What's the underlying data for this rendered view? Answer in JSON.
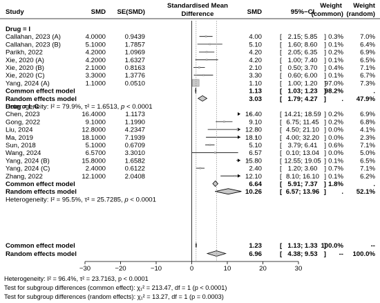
{
  "headers": {
    "study": "Study",
    "smd": "SMD",
    "se": "SE(SMD)",
    "plot_title_line1": "Standardised Mean",
    "plot_title_line2": "Difference",
    "smd2": "SMD",
    "ci": "95%−CI",
    "weight_common_line1": "Weight",
    "weight_common_line2": "(common)",
    "weight_random_line1": "Weight",
    "weight_random_line2": "(random)"
  },
  "chart_data": {
    "type": "forest",
    "x_ticks": [
      -30,
      -20,
      -10,
      0,
      10,
      20,
      30
    ],
    "x_tick_labels": [
      "−30",
      "−20",
      "−10",
      "0",
      "10",
      "20",
      "30"
    ],
    "xlim": [
      -30,
      30
    ],
    "groups": [
      {
        "label": "Drug = I",
        "studies": [
          {
            "study": "Callahan, 2023 (A)",
            "smd": "4.0000",
            "se": "0.9439",
            "est": 4.0,
            "lo": 2.15,
            "hi": 5.85,
            "est_text": "4.00",
            "ci_text": "[ 2.15;  5.85]",
            "w_common": "0.3%",
            "w_random": "7.0%"
          },
          {
            "study": "Callahan, 2023 (B)",
            "smd": "5.1000",
            "se": "1.7857",
            "est": 5.1,
            "lo": 1.6,
            "hi": 8.6,
            "est_text": "5.10",
            "ci_text": "[ 1.60;  8.60]",
            "w_common": "0.1%",
            "w_random": "6.4%"
          },
          {
            "study": "Parikh, 2022",
            "smd": "4.2000",
            "se": "1.0969",
            "est": 4.2,
            "lo": 2.05,
            "hi": 6.35,
            "est_text": "4.20",
            "ci_text": "[ 2.05;  6.35]",
            "w_common": "0.2%",
            "w_random": "6.9%"
          },
          {
            "study": "Xie, 2020 (A)",
            "smd": "4.2000",
            "se": "1.6327",
            "est": 4.2,
            "lo": 1.0,
            "hi": 7.4,
            "est_text": "4.20",
            "ci_text": "[ 1.00;  7.40]",
            "w_common": "0.1%",
            "w_random": "6.5%"
          },
          {
            "study": "Xie, 2020 (B)",
            "smd": "2.1000",
            "se": "0.8163",
            "est": 2.1,
            "lo": 0.5,
            "hi": 3.7,
            "est_text": "2.10",
            "ci_text": "[ 0.50;  3.70]",
            "w_common": "0.4%",
            "w_random": "7.1%"
          },
          {
            "study": "Xie, 2020 (C)",
            "smd": "3.3000",
            "se": "1.3776",
            "est": 3.3,
            "lo": 0.6,
            "hi": 6.0,
            "est_text": "3.30",
            "ci_text": "[ 0.60;  6.00]",
            "w_common": "0.1%",
            "w_random": "6.7%"
          },
          {
            "study": "Yang, 2024 (A)",
            "smd": "1.1000",
            "se": "0.0510",
            "est": 1.1,
            "lo": 1.0,
            "hi": 1.2,
            "est_text": "1.10",
            "ci_text": "[ 1.00;  1.20]",
            "w_common": "97.0%",
            "w_random": "7.3%"
          }
        ],
        "common": {
          "label": "Common effect model",
          "est": 1.13,
          "lo": 1.03,
          "hi": 1.23,
          "est_text": "1.13",
          "ci_text": "[ 1.03;  1.23]",
          "w_common": "98.2%",
          "w_random": "."
        },
        "random": {
          "label": "Random effects model",
          "est": 3.03,
          "lo": 1.79,
          "hi": 4.27,
          "est_text": "3.03",
          "ci_text": "[ 1.79;  4.27]",
          "w_common": ".",
          "w_random": "47.9%"
        },
        "heterogeneity": "Heterogeneity: I² = 79.9%, τ² = 1.6513, p < 0.0001"
      },
      {
        "label": "Drug = I_C",
        "studies": [
          {
            "study": "Chen, 2023",
            "smd": "16.4000",
            "se": "1.1173",
            "est": 16.4,
            "lo": 14.21,
            "hi": 18.59,
            "est_text": "16.40",
            "ci_text": "[14.21; 18.59]",
            "w_common": "0.2%",
            "w_random": "6.9%"
          },
          {
            "study": "Gong, 2022",
            "smd": "9.1000",
            "se": "1.1990",
            "est": 9.1,
            "lo": 6.75,
            "hi": 11.45,
            "est_text": "9.10",
            "ci_text": "[ 6.75; 11.45]",
            "w_common": "0.2%",
            "w_random": "6.8%"
          },
          {
            "study": "Liu, 2024",
            "smd": "12.8000",
            "se": "4.2347",
            "est": 12.8,
            "lo": 4.5,
            "hi": 21.1,
            "est_text": "12.80",
            "ci_text": "[ 4.50; 21.10]",
            "w_common": "0.0%",
            "w_random": "4.1%"
          },
          {
            "study": "Ma, 2019",
            "smd": "18.1000",
            "se": "7.1939",
            "est": 18.1,
            "lo": 4.0,
            "hi": 32.2,
            "est_text": "18.10",
            "ci_text": "[ 4.00; 32.20]",
            "w_common": "0.0%",
            "w_random": "2.3%"
          },
          {
            "study": "Sun, 2018",
            "smd": "5.1000",
            "se": "0.6709",
            "est": 5.1,
            "lo": 3.79,
            "hi": 6.41,
            "est_text": "5.10",
            "ci_text": "[ 3.79;  6.41]",
            "w_common": "0.6%",
            "w_random": "7.1%"
          },
          {
            "study": "Wang, 2024",
            "smd": "6.5700",
            "se": "3.3010",
            "est": 6.57,
            "lo": 0.1,
            "hi": 13.04,
            "est_text": "6.57",
            "ci_text": "[ 0.10; 13.04]",
            "w_common": "0.0%",
            "w_random": "5.0%"
          },
          {
            "study": "Yang, 2024 (B)",
            "smd": "15.8000",
            "se": "1.6582",
            "est": 15.8,
            "lo": 12.55,
            "hi": 19.05,
            "est_text": "15.80",
            "ci_text": "[12.55; 19.05]",
            "w_common": "0.1%",
            "w_random": "6.5%"
          },
          {
            "study": "Yang, 2024 (C)",
            "smd": "2.4000",
            "se": "0.6122",
            "est": 2.4,
            "lo": 1.2,
            "hi": 3.6,
            "est_text": "2.40",
            "ci_text": "[ 1.20;  3.60]",
            "w_common": "0.7%",
            "w_random": "7.1%"
          },
          {
            "study": "Zhang, 2022",
            "smd": "12.1000",
            "se": "2.0408",
            "est": 12.1,
            "lo": 8.1,
            "hi": 16.1,
            "est_text": "12.10",
            "ci_text": "[ 8.10; 16.10]",
            "w_common": "0.1%",
            "w_random": "6.2%"
          }
        ],
        "common": {
          "label": "Common effect model",
          "est": 6.64,
          "lo": 5.91,
          "hi": 7.37,
          "est_text": "6.64",
          "ci_text": "[ 5.91;  7.37]",
          "w_common": "1.8%",
          "w_random": "."
        },
        "random": {
          "label": "Random effects model",
          "est": 10.26,
          "lo": 6.57,
          "hi": 13.96,
          "est_text": "10.26",
          "ci_text": "[ 6.57; 13.96]",
          "w_common": ".",
          "w_random": "52.1%"
        },
        "heterogeneity": "Heterogeneity: I² = 95.5%, τ² = 25.7285, p < 0.0001"
      }
    ],
    "overall_common": {
      "label": "Common effect model",
      "est": 1.23,
      "lo": 1.13,
      "hi": 1.33,
      "est_text": "1.23",
      "ci_text": "[ 1.13;  1.33]",
      "w_common": "100.0%",
      "w_random": "--"
    },
    "overall_random": {
      "label": "Random effects model",
      "est": 6.96,
      "lo": 4.38,
      "hi": 9.53,
      "est_text": "6.96",
      "ci_text": "[ 4.38;  9.53]",
      "w_common": "--",
      "w_random": "100.0%"
    },
    "colors": {
      "diamond_fill": "#c8c8c8",
      "square_fill": "#c8c8c8",
      "line": "#000000",
      "dotted": "#888888"
    }
  },
  "footer": {
    "heterogeneity": "Heterogeneity: I² = 96.4%, τ² = 23.7163, p < 0.0001",
    "common_test": "Test for subgroup differences (common effect): χ₁² = 213.47, df = 1 (p < 0.0001)",
    "random_test": "Test for subgroup differences (random effects): χ₁² = 13.27, df = 1 (p = 0.0003)"
  }
}
